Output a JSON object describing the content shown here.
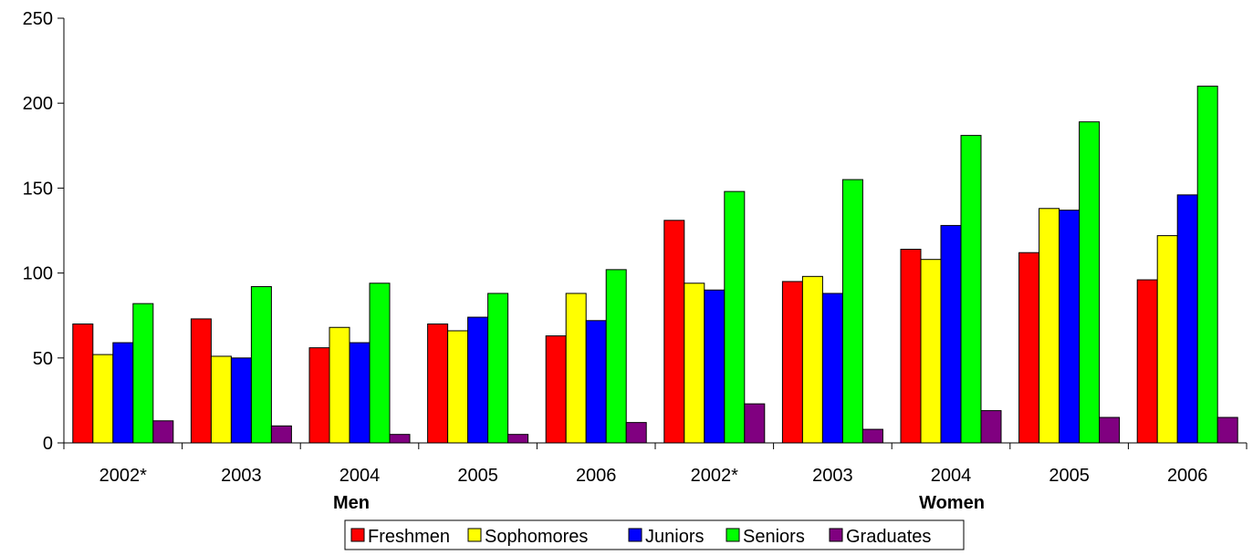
{
  "chart_data": {
    "type": "bar",
    "categories": [
      "2002*",
      "2003",
      "2004",
      "2005",
      "2006",
      "2002*",
      "2003",
      "2004",
      "2005",
      "2006"
    ],
    "groups": [
      {
        "label": "Men",
        "categories": [
          "2002*",
          "2003",
          "2004",
          "2005",
          "2006"
        ]
      },
      {
        "label": "Women",
        "categories": [
          "2002*",
          "2003",
          "2004",
          "2005",
          "2006"
        ]
      }
    ],
    "series": [
      {
        "name": "Freshmen",
        "color": "#ff0000",
        "values": [
          70,
          73,
          56,
          70,
          63,
          131,
          95,
          114,
          112,
          96
        ]
      },
      {
        "name": "Sophomores",
        "color": "#ffff00",
        "values": [
          52,
          51,
          68,
          66,
          88,
          94,
          98,
          108,
          138,
          122
        ]
      },
      {
        "name": "Juniors",
        "color": "#0000ff",
        "values": [
          59,
          50,
          59,
          74,
          72,
          90,
          88,
          128,
          137,
          146
        ]
      },
      {
        "name": "Seniors",
        "color": "#00ff00",
        "values": [
          82,
          92,
          94,
          88,
          102,
          148,
          155,
          181,
          189,
          210
        ]
      },
      {
        "name": "Graduates",
        "color": "#800080",
        "values": [
          13,
          10,
          5,
          5,
          12,
          23,
          8,
          19,
          15,
          15
        ]
      }
    ],
    "ylim": [
      0,
      250
    ],
    "yticks": [
      0,
      50,
      100,
      150,
      200,
      250
    ],
    "title": "",
    "xlabel": "",
    "ylabel": "",
    "legend": "bottom",
    "grid": false
  }
}
